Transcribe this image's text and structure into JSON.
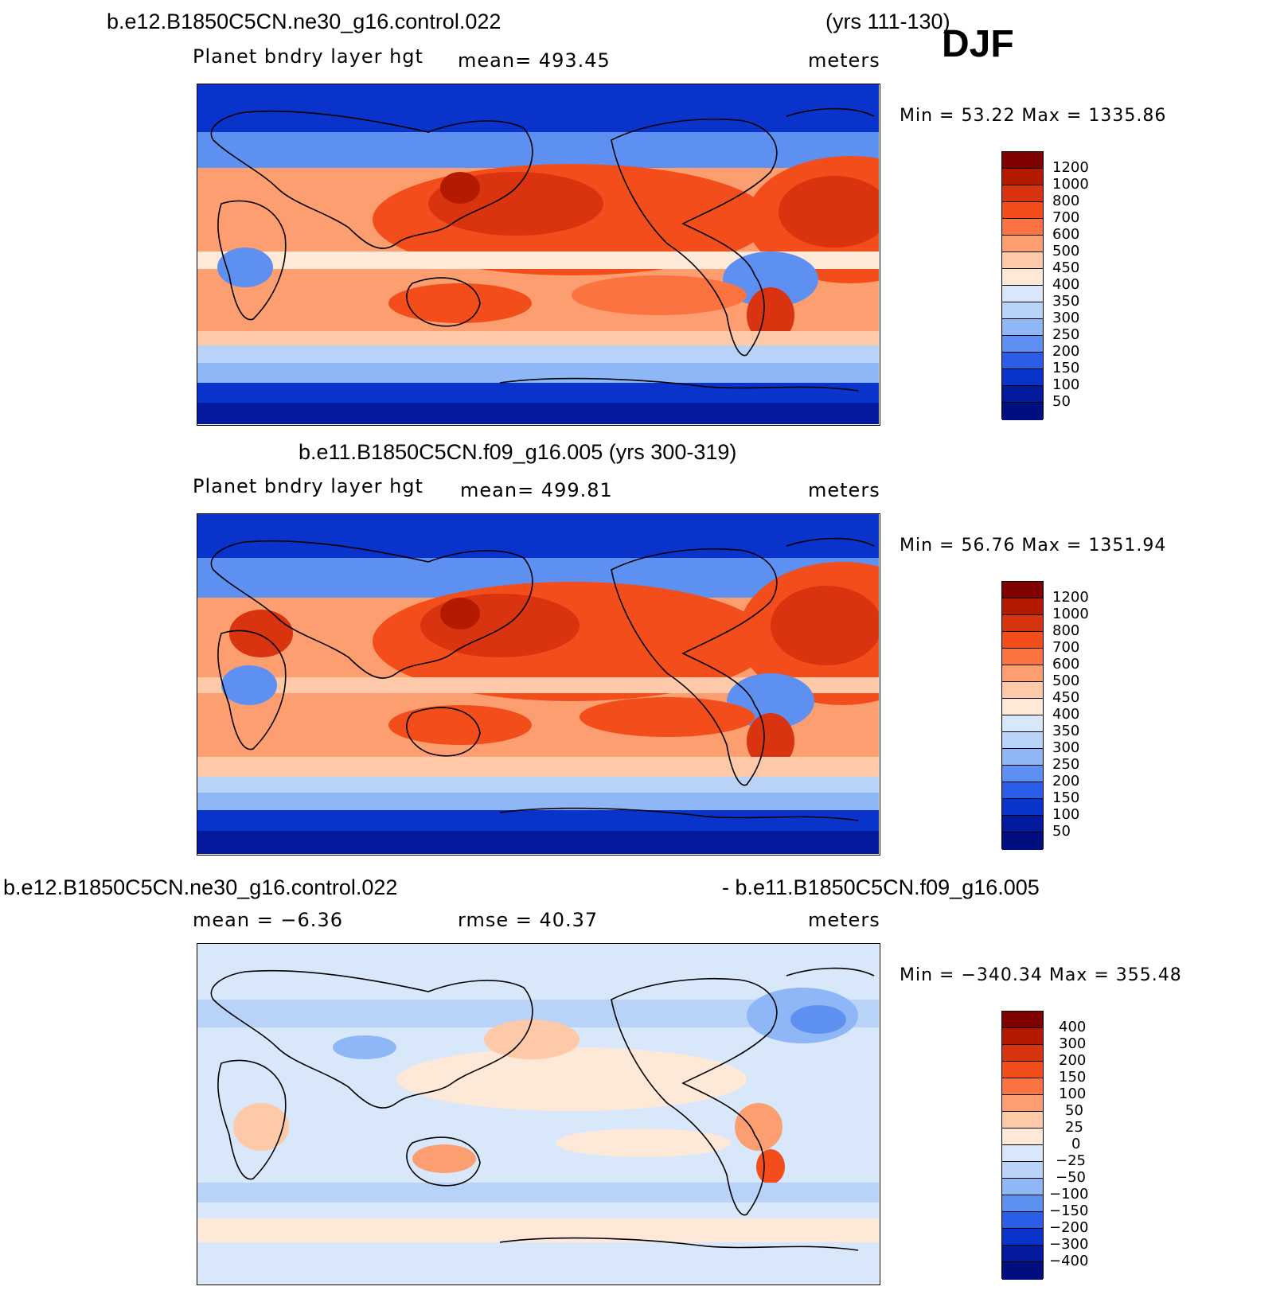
{
  "season": "DJF",
  "panel1": {
    "case": "b.e12.B1850C5CN.ne30_g16.control.022",
    "years": "(yrs 111-130)",
    "variable": "Planet bndry layer hgt",
    "mean": "mean=  493.45",
    "units": "meters",
    "minmax": "Min =   53.22 Max =  1335.86",
    "levels": [
      "1200",
      "1000",
      "800",
      "700",
      "600",
      "500",
      "450",
      "400",
      "350",
      "300",
      "250",
      "200",
      "150",
      "100",
      "50"
    ]
  },
  "panel2": {
    "title": "b.e11.B1850C5CN.f09_g16.005 (yrs 300-319)",
    "variable": "Planet bndry layer hgt",
    "mean": "mean=  499.81",
    "units": "meters",
    "minmax": "Min =   56.76 Max =  1351.94",
    "levels": [
      "1200",
      "1000",
      "800",
      "700",
      "600",
      "500",
      "450",
      "400",
      "350",
      "300",
      "250",
      "200",
      "150",
      "100",
      "50"
    ]
  },
  "panel3": {
    "case_a": "b.e12.B1850C5CN.ne30_g16.control.022",
    "case_b": "- b.e11.B1850C5CN.f09_g16.005",
    "mean": "mean =   −6.36",
    "rmse": "rmse =   40.37",
    "units": "meters",
    "minmax": "Min = −340.34  Max =  355.48",
    "levels": [
      "400",
      "300",
      "200",
      "150",
      "100",
      "50",
      "25",
      "0",
      "−25",
      "−50",
      "−100",
      "−150",
      "−200",
      "−300",
      "−400"
    ]
  },
  "colors": {
    "abs_scale": [
      "#800000",
      "#b31a00",
      "#d93310",
      "#f24d1a",
      "#fa7340",
      "#fc9e70",
      "#fdc9a8",
      "#fee8d8",
      "#d8e8fa",
      "#b8d2f8",
      "#8fb7f7",
      "#5e90f2",
      "#2a5ee8",
      "#0a33cc",
      "#03199e",
      "#000e80"
    ],
    "diff_scale": [
      "#800000",
      "#b31a00",
      "#d93310",
      "#f24d1a",
      "#fa7340",
      "#fc9e70",
      "#fdc9a8",
      "#fee8d8",
      "#d8e8fa",
      "#b8d2f8",
      "#8fb7f7",
      "#5e90f2",
      "#2a5ee8",
      "#0a33cc",
      "#03199e",
      "#000e80"
    ]
  }
}
